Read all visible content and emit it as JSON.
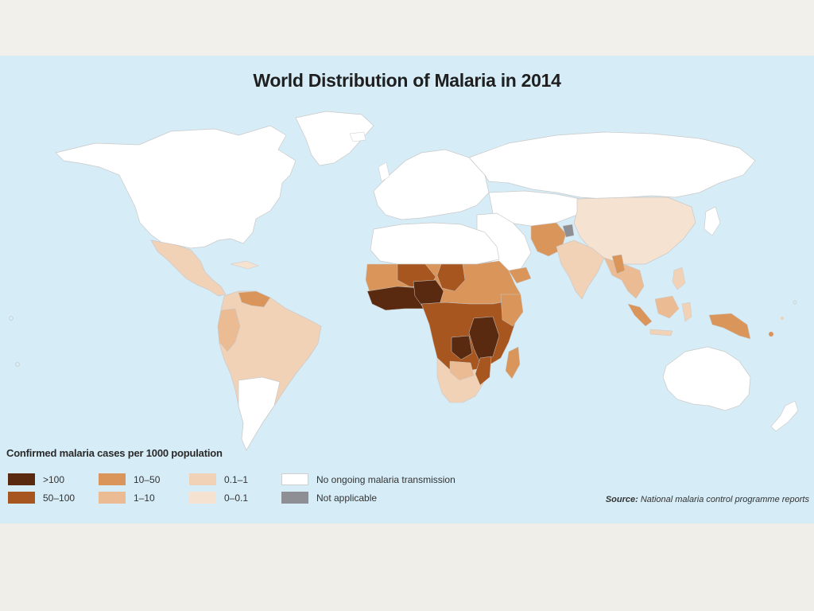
{
  "map": {
    "title": "World Distribution of Malaria in 2014",
    "legend": {
      "title": "Confirmed malaria cases per 1000 population",
      "items": [
        {
          "label": ">100",
          "color": "#5a2a10"
        },
        {
          "label": "50–100",
          "color": "#a8561f"
        },
        {
          "label": "10–50",
          "color": "#d9955a"
        },
        {
          "label": "1–10",
          "color": "#ebbb93"
        },
        {
          "label": "0.1–1",
          "color": "#f2d2b6"
        },
        {
          "label": "0–0.1",
          "color": "#f6e2d0"
        },
        {
          "label": "No ongoing malaria transmission",
          "color": "#ffffff"
        },
        {
          "label": "Not applicable",
          "color": "#8e8e95"
        }
      ]
    },
    "source": {
      "label": "Source:",
      "text": "National malaria control programme reports"
    },
    "colors": {
      "ocean": "#d6ecf6",
      "no_transmission": "#ffffff",
      "border": "#c9c9c9"
    }
  }
}
